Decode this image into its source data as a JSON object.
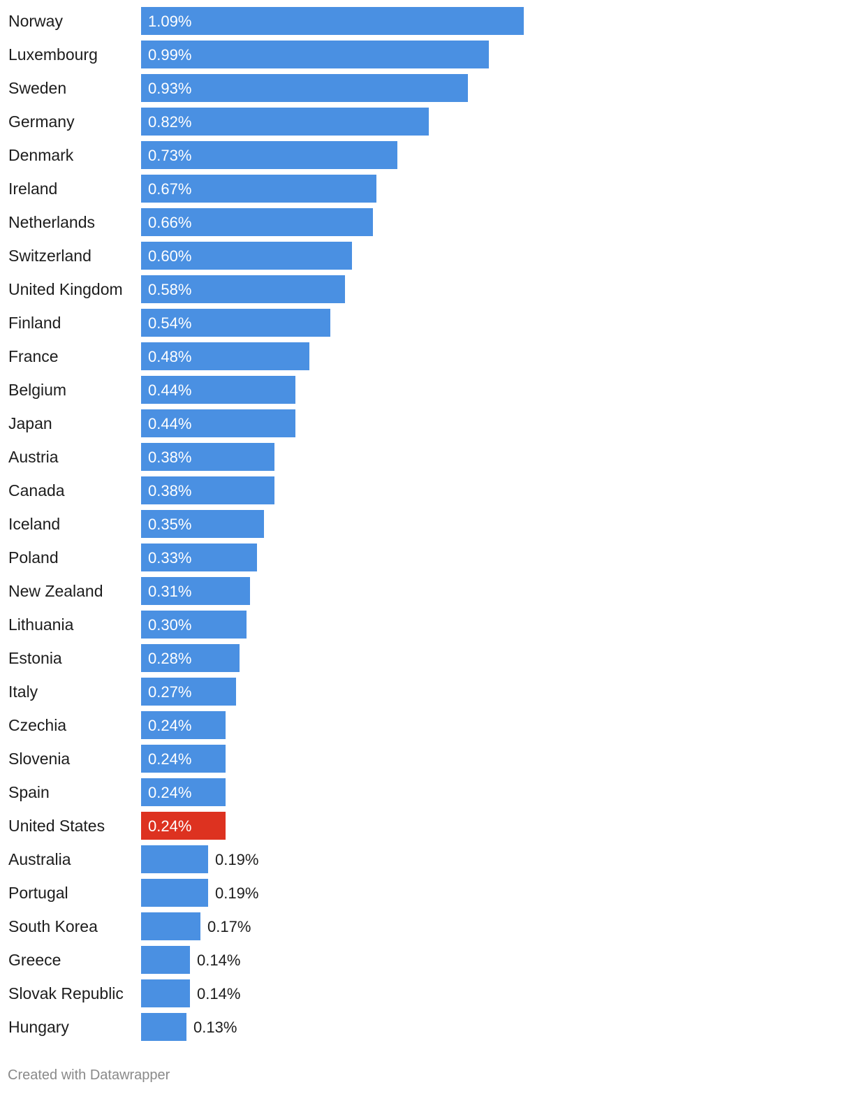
{
  "chart_data": {
    "type": "bar",
    "orientation": "horizontal",
    "categories": [
      "Norway",
      "Luxembourg",
      "Sweden",
      "Germany",
      "Denmark",
      "Ireland",
      "Netherlands",
      "Switzerland",
      "United Kingdom",
      "Finland",
      "France",
      "Belgium",
      "Japan",
      "Austria",
      "Canada",
      "Iceland",
      "Poland",
      "New Zealand",
      "Lithuania",
      "Estonia",
      "Italy",
      "Czechia",
      "Slovenia",
      "Spain",
      "United States",
      "Australia",
      "Portugal",
      "South Korea",
      "Greece",
      "Slovak Republic",
      "Hungary"
    ],
    "values": [
      1.09,
      0.99,
      0.93,
      0.82,
      0.73,
      0.67,
      0.66,
      0.6,
      0.58,
      0.54,
      0.48,
      0.44,
      0.44,
      0.38,
      0.38,
      0.35,
      0.33,
      0.31,
      0.3,
      0.28,
      0.27,
      0.24,
      0.24,
      0.24,
      0.24,
      0.19,
      0.19,
      0.17,
      0.14,
      0.14,
      0.13
    ],
    "value_labels": [
      "1.09%",
      "0.99%",
      "0.93%",
      "0.82%",
      "0.73%",
      "0.67%",
      "0.66%",
      "0.60%",
      "0.58%",
      "0.54%",
      "0.48%",
      "0.44%",
      "0.44%",
      "0.38%",
      "0.38%",
      "0.35%",
      "0.33%",
      "0.31%",
      "0.30%",
      "0.28%",
      "0.27%",
      "0.24%",
      "0.24%",
      "0.24%",
      "0.24%",
      "0.19%",
      "0.19%",
      "0.17%",
      "0.14%",
      "0.14%",
      "0.13%"
    ],
    "highlight": "United States",
    "colors": {
      "bar": "#4a90e2",
      "highlight": "#dd3220"
    },
    "title": "",
    "xlabel": "",
    "ylabel": "",
    "xlim": [
      0,
      1.09
    ],
    "grid": false,
    "legend": "none"
  },
  "footer": {
    "credit": "Created with Datawrapper"
  }
}
